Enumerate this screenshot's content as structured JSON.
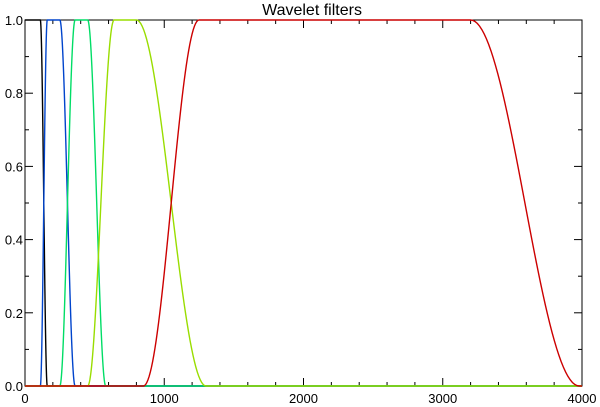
{
  "chart_data": {
    "type": "line",
    "title": "Wavelet filters",
    "xlabel": "",
    "ylabel": "",
    "xlim": [
      0,
      4000
    ],
    "ylim": [
      0,
      1.0
    ],
    "grid": false,
    "x_ticks": [
      0,
      1000,
      2000,
      3000,
      4000
    ],
    "x_tick_labels": [
      "0",
      "1000",
      "2000",
      "3000",
      "4000"
    ],
    "y_ticks": [
      0.0,
      0.2,
      0.4,
      0.6,
      0.8,
      1.0
    ],
    "y_tick_labels": [
      "0.0",
      "0.2",
      "0.4",
      "0.6",
      "0.8",
      "1.0"
    ],
    "series": [
      {
        "color": "#000000",
        "x": [
          0,
          110,
          160,
          4000
        ],
        "y": [
          1,
          1,
          0,
          0
        ]
      },
      {
        "color": "#0044cc",
        "x": [
          0,
          110,
          160,
          250,
          360,
          4000
        ],
        "y": [
          0,
          0,
          1,
          1,
          0,
          0
        ]
      },
      {
        "color": "#00dd66",
        "x": [
          0,
          250,
          360,
          450,
          580,
          4000
        ],
        "y": [
          0,
          0,
          1,
          1,
          0,
          0
        ]
      },
      {
        "color": "#99dd00",
        "x": [
          0,
          450,
          640,
          800,
          1300,
          4000
        ],
        "y": [
          0,
          0,
          1,
          1,
          0,
          0
        ]
      },
      {
        "color": "#cc0000",
        "x": [
          0,
          850,
          1250,
          3200,
          3980,
          4000
        ],
        "y": [
          0,
          0,
          1,
          1,
          0,
          0
        ]
      }
    ]
  }
}
